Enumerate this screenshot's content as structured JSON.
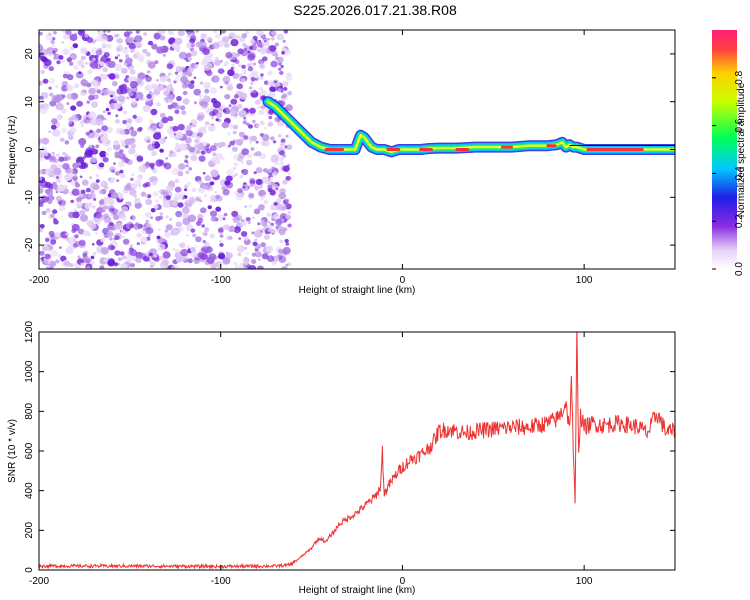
{
  "chart_data": [
    {
      "type": "heatmap",
      "title": "S225.2026.017.21.38.R08",
      "xlabel": "Height of straight line (km)",
      "ylabel": "Frequency (Hz)",
      "xlim": [
        -200,
        150
      ],
      "ylim": [
        -25,
        25
      ],
      "x_ticks": [
        -200,
        -100,
        0,
        100
      ],
      "x_tick_labels": [
        "-200",
        "-100",
        "0",
        "100"
      ],
      "y_ticks": [
        -20,
        -10,
        0,
        10,
        20
      ],
      "y_tick_labels": [
        "-20",
        "-10",
        "0",
        "10",
        "20"
      ],
      "noise_region_x": [
        -200,
        -62
      ],
      "ridge": {
        "x": [
          -74,
          -70,
          -66,
          -62,
          -58,
          -54,
          -50,
          -45,
          -40,
          -35,
          -30,
          -26,
          -23,
          -21,
          -19,
          -17,
          -14,
          -10,
          -6,
          -2,
          0,
          5,
          10,
          15,
          20,
          30,
          40,
          50,
          60,
          70,
          80,
          85,
          88,
          90,
          92,
          94,
          96,
          100,
          110,
          120,
          130,
          140,
          150
        ],
        "freq": [
          10,
          9,
          7.5,
          6,
          4.5,
          3,
          1.5,
          0.5,
          0,
          0,
          0,
          0,
          3,
          2.5,
          1.5,
          0.5,
          0,
          0,
          -0.5,
          0,
          0,
          0,
          0,
          0.2,
          0.3,
          0.3,
          0.5,
          0.5,
          0.5,
          0.8,
          0.8,
          1,
          1.5,
          0.5,
          1,
          0.5,
          0.5,
          0,
          0,
          0,
          0,
          0,
          0
        ]
      },
      "colorbar": {
        "label": "Normalized spectral amplitude",
        "range": [
          0,
          1
        ],
        "ticks": [
          0.0,
          0.2,
          0.4,
          0.6,
          0.8
        ],
        "tick_labels": [
          "0.0",
          "0.2",
          "0.4",
          "0.6",
          "0.8"
        ]
      }
    },
    {
      "type": "line",
      "xlabel": "Height of straight line (km)",
      "ylabel": "SNR (10 * v/v)",
      "xlim": [
        -200,
        150
      ],
      "ylim": [
        0,
        1200
      ],
      "x_ticks": [
        -200,
        -100,
        0,
        100
      ],
      "x_tick_labels": [
        "-200",
        "-100",
        "0",
        "100"
      ],
      "y_ticks": [
        0,
        200,
        400,
        600,
        800,
        1000,
        1200
      ],
      "y_tick_labels": [
        "0",
        "200",
        "400",
        "600",
        "800",
        "1000",
        "1200"
      ],
      "line_color": "#ee3333",
      "series": [
        {
          "name": "SNR",
          "x": [
            -200,
            -150,
            -100,
            -70,
            -62,
            -58,
            -50,
            -48,
            -45,
            -42,
            -40,
            -37,
            -35,
            -30,
            -25,
            -20,
            -15,
            -12,
            -11,
            -10,
            -8,
            -5,
            -2,
            0,
            5,
            10,
            15,
            18,
            20,
            25,
            30,
            35,
            40,
            50,
            60,
            70,
            80,
            85,
            88,
            90,
            92,
            93,
            94,
            95,
            96,
            97,
            98,
            100,
            105,
            110,
            120,
            125,
            130,
            135,
            140,
            145,
            150
          ],
          "y": [
            20,
            20,
            18,
            20,
            25,
            50,
            110,
            140,
            160,
            140,
            170,
            200,
            230,
            260,
            290,
            330,
            370,
            420,
            600,
            380,
            420,
            460,
            500,
            520,
            560,
            580,
            620,
            660,
            700,
            710,
            700,
            690,
            700,
            710,
            720,
            720,
            740,
            760,
            800,
            850,
            700,
            1000,
            600,
            330,
            1200,
            600,
            780,
            720,
            740,
            730,
            740,
            730,
            720,
            690,
            790,
            700,
            700
          ]
        }
      ]
    }
  ]
}
